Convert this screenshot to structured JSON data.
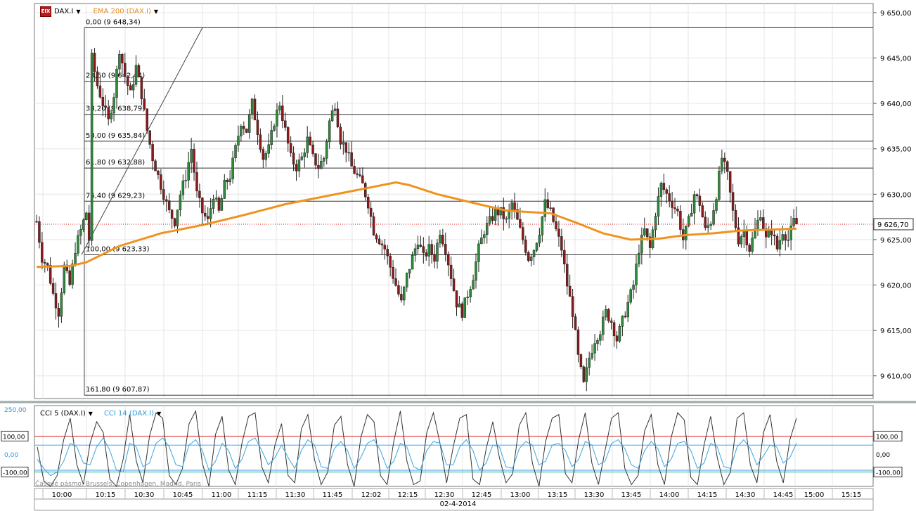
{
  "main_header": {
    "instrument": "DAX.I",
    "ema_label": "EMA 200 (DAX.I)",
    "logo_text": "EIX"
  },
  "sub_header": {
    "cci5_label": "CCI 5 (DAX.I)",
    "cci14_label": "CCI 14 (DAX.I)"
  },
  "timezone": "Časové pásmo: Brussels, Copenhagen, Madrid, Paris",
  "date": "02-4-2014",
  "colors": {
    "up_candle": "#2e8b3a",
    "down_candle": "#8b1a1a",
    "ema": "#f0931e",
    "cci5": "#333333",
    "cci14": "#3aa6e0",
    "fib_line": "#333333",
    "cci_upper": "#d81b1b",
    "cci_lower": "#1aa08a",
    "last_price_line": "#d81b1b"
  },
  "chart_data": [
    {
      "type": "candlestick",
      "title": "DAX.I",
      "ylim": [
        9607.5,
        9651
      ],
      "yticks": [
        "9 650,00",
        "9 645,00",
        "9 640,00",
        "9 635,00",
        "9 630,00",
        "9 625,00",
        "9 620,00",
        "9 615,00",
        "9 610,00"
      ],
      "ytick_values": [
        9650,
        9645,
        9640,
        9635,
        9630,
        9625,
        9620,
        9615,
        9610
      ],
      "xticks": [
        "10:00",
        "10:15",
        "10:30",
        "10:45",
        "11:00",
        "11:15",
        "11:30",
        "11:45",
        "12:02",
        "12:15",
        "12:30",
        "12:45",
        "13:00",
        "13:15",
        "13:30",
        "13:45",
        "14:00",
        "14:15",
        "14:30",
        "14:45",
        "15:00",
        "15:15"
      ],
      "last_price": 9626.7,
      "last_price_label": "9 626,70",
      "fibonacci": [
        {
          "label": "0,00 (9 648,34)",
          "value": 9648.34
        },
        {
          "label": "23,60 (9 642,44)",
          "value": 9642.44
        },
        {
          "label": "38,20 (9 638,79)",
          "value": 9638.79
        },
        {
          "label": "50,00 (9 635,84)",
          "value": 9635.84
        },
        {
          "label": "61,80 (9 632,88)",
          "value": 9632.88
        },
        {
          "label": "76,40 (9 629,23)",
          "value": 9629.23
        },
        {
          "label": "100,00 (9 623,33)",
          "value": 9623.33
        },
        {
          "label": "161,80 (9 607,87)",
          "value": 9607.87
        }
      ],
      "close_path": [
        [
          0,
          9627
        ],
        [
          2,
          9623
        ],
        [
          4,
          9622
        ],
        [
          6,
          9619
        ],
        [
          8,
          9617
        ],
        [
          10,
          9622
        ],
        [
          12,
          9620
        ],
        [
          14,
          9624
        ],
        [
          16,
          9626
        ],
        [
          18,
          9628
        ],
        [
          19,
          9625
        ],
        [
          20,
          9645
        ],
        [
          22,
          9642
        ],
        [
          24,
          9640
        ],
        [
          26,
          9638
        ],
        [
          28,
          9641
        ],
        [
          30,
          9646
        ],
        [
          32,
          9643
        ],
        [
          34,
          9641
        ],
        [
          36,
          9644
        ],
        [
          38,
          9641
        ],
        [
          40,
          9637
        ],
        [
          42,
          9634
        ],
        [
          44,
          9632
        ],
        [
          46,
          9630
        ],
        [
          48,
          9628
        ],
        [
          50,
          9627
        ],
        [
          52,
          9630
        ],
        [
          54,
          9632
        ],
        [
          56,
          9635
        ],
        [
          58,
          9630
        ],
        [
          60,
          9628
        ],
        [
          62,
          9627
        ],
        [
          64,
          9630
        ],
        [
          66,
          9628
        ],
        [
          68,
          9631
        ],
        [
          70,
          9632
        ],
        [
          72,
          9635
        ],
        [
          74,
          9638
        ],
        [
          76,
          9637
        ],
        [
          78,
          9640
        ],
        [
          80,
          9637
        ],
        [
          82,
          9634
        ],
        [
          84,
          9635
        ],
        [
          86,
          9638
        ],
        [
          88,
          9640
        ],
        [
          90,
          9637
        ],
        [
          92,
          9634
        ],
        [
          94,
          9633
        ],
        [
          96,
          9634
        ],
        [
          98,
          9636
        ],
        [
          100,
          9634
        ],
        [
          102,
          9633
        ],
        [
          104,
          9634
        ],
        [
          106,
          9638
        ],
        [
          108,
          9640
        ],
        [
          110,
          9636
        ],
        [
          112,
          9635
        ],
        [
          114,
          9633
        ],
        [
          116,
          9632
        ],
        [
          118,
          9631
        ],
        [
          120,
          9629
        ],
        [
          122,
          9626
        ],
        [
          124,
          9625
        ],
        [
          126,
          9624
        ],
        [
          128,
          9622
        ],
        [
          130,
          9620
        ],
        [
          132,
          9618
        ],
        [
          134,
          9621
        ],
        [
          136,
          9623
        ],
        [
          138,
          9625
        ],
        [
          140,
          9623
        ],
        [
          142,
          9624
        ],
        [
          144,
          9623
        ],
        [
          146,
          9626
        ],
        [
          148,
          9624
        ],
        [
          150,
          9621
        ],
        [
          152,
          9618
        ],
        [
          154,
          9617
        ],
        [
          156,
          9619
        ],
        [
          158,
          9621
        ],
        [
          160,
          9624
        ],
        [
          162,
          9626
        ],
        [
          164,
          9627
        ],
        [
          166,
          9628
        ],
        [
          168,
          9628
        ],
        [
          170,
          9627
        ],
        [
          172,
          9629
        ],
        [
          174,
          9627
        ],
        [
          176,
          9625
        ],
        [
          178,
          9623
        ],
        [
          180,
          9624
        ],
        [
          182,
          9626
        ],
        [
          184,
          9629
        ],
        [
          186,
          9628
        ],
        [
          188,
          9626
        ],
        [
          190,
          9624
        ],
        [
          192,
          9620
        ],
        [
          194,
          9617
        ],
        [
          196,
          9612
        ],
        [
          198,
          9609
        ],
        [
          200,
          9612
        ],
        [
          202,
          9614
        ],
        [
          204,
          9615
        ],
        [
          206,
          9617
        ],
        [
          208,
          9616
        ],
        [
          210,
          9614
        ],
        [
          212,
          9616
        ],
        [
          214,
          9618
        ],
        [
          216,
          9620
        ],
        [
          218,
          9624
        ],
        [
          220,
          9626
        ],
        [
          222,
          9624
        ],
        [
          224,
          9628
        ],
        [
          226,
          9631
        ],
        [
          228,
          9630
        ],
        [
          230,
          9629
        ],
        [
          232,
          9628
        ],
        [
          234,
          9625
        ],
        [
          236,
          9627
        ],
        [
          238,
          9630
        ],
        [
          240,
          9629
        ],
        [
          242,
          9626
        ],
        [
          244,
          9627
        ],
        [
          246,
          9630
        ],
        [
          248,
          9634
        ],
        [
          250,
          9632
        ],
        [
          252,
          9628
        ],
        [
          254,
          9625
        ],
        [
          256,
          9626
        ],
        [
          258,
          9624
        ],
        [
          260,
          9626
        ],
        [
          262,
          9628
        ],
        [
          264,
          9625
        ],
        [
          266,
          9626
        ],
        [
          268,
          9624
        ],
        [
          270,
          9626
        ],
        [
          272,
          9625
        ],
        [
          274,
          9627
        ],
        [
          275,
          9626.7
        ]
      ],
      "ema200": [
        [
          0,
          9622
        ],
        [
          12,
          9622.1
        ],
        [
          18,
          9622.5
        ],
        [
          30,
          9624.3
        ],
        [
          45,
          9625.7
        ],
        [
          60,
          9626.6
        ],
        [
          75,
          9627.7
        ],
        [
          90,
          9628.9
        ],
        [
          105,
          9629.8
        ],
        [
          120,
          9630.7
        ],
        [
          130,
          9631.3
        ],
        [
          135,
          9631.0
        ],
        [
          145,
          9630.0
        ],
        [
          160,
          9628.9
        ],
        [
          170,
          9628.2
        ],
        [
          180,
          9628.0
        ],
        [
          186,
          9627.9
        ],
        [
          195,
          9626.9
        ],
        [
          205,
          9625.7
        ],
        [
          215,
          9625.0
        ],
        [
          225,
          9625.1
        ],
        [
          235,
          9625.5
        ],
        [
          245,
          9625.7
        ],
        [
          255,
          9626.0
        ],
        [
          265,
          9626.1
        ],
        [
          275,
          9626.2
        ]
      ]
    },
    {
      "type": "line",
      "title": "CCI",
      "ylim": [
        -180,
        270
      ],
      "left_ticks": [
        "250,00",
        "100,00",
        "0,00",
        "-100,00"
      ],
      "left_tick_values": [
        250,
        100,
        0,
        -100
      ],
      "right_ticks": [
        "100,00",
        "0,00",
        "-100,00"
      ],
      "right_tick_values": [
        100,
        0,
        -100
      ],
      "series": [
        {
          "name": "CCI 5 (DAX.I)",
          "values": [
            40,
            -150,
            -180,
            -120,
            80,
            200,
            -60,
            -170,
            60,
            180,
            120,
            -140,
            -180,
            -30,
            220,
            -40,
            -160,
            100,
            230,
            200,
            -120,
            -170,
            -80,
            170,
            240,
            -50,
            -180,
            110,
            210,
            -90,
            -170,
            60,
            210,
            230,
            -70,
            -160,
            50,
            170,
            -120,
            -160,
            140,
            220,
            -30,
            -170,
            -100,
            160,
            210,
            -60,
            -180,
            90,
            220,
            180,
            -120,
            -170,
            70,
            240,
            -40,
            -170,
            -150,
            120,
            230,
            60,
            -160,
            40,
            200,
            220,
            -140,
            -170,
            30,
            180,
            -20,
            -160,
            -110,
            160,
            230,
            -50,
            -180,
            70,
            200,
            220,
            -110,
            -160,
            80,
            230,
            -50,
            -170,
            20,
            200,
            230,
            -80,
            -170,
            -120,
            130,
            220,
            -60,
            -170,
            90,
            230,
            190,
            -130,
            -170,
            50,
            210,
            -20,
            -170,
            -100,
            200,
            230,
            -60,
            -160,
            120,
            220,
            -40,
            -160,
            80,
            200
          ]
        },
        {
          "name": "CCI 14 (DAX.I)",
          "values": [
            -30,
            -80,
            -120,
            -100,
            -40,
            60,
            40,
            -50,
            -60,
            40,
            90,
            20,
            -90,
            -100,
            60,
            40,
            -70,
            -50,
            60,
            90,
            40,
            -60,
            -70,
            50,
            80,
            20,
            -90,
            -40,
            60,
            20,
            -80,
            -30,
            70,
            90,
            20,
            -60,
            -20,
            50,
            -20,
            -80,
            20,
            80,
            50,
            -70,
            -80,
            30,
            70,
            20,
            -80,
            -20,
            60,
            80,
            20,
            -80,
            -40,
            60,
            40,
            -70,
            -90,
            20,
            70,
            60,
            -60,
            -60,
            40,
            80,
            20,
            -90,
            -50,
            50,
            40,
            -70,
            -80,
            30,
            70,
            50,
            -60,
            -40,
            50,
            60,
            20,
            -70,
            -30,
            70,
            50,
            -60,
            -40,
            60,
            80,
            30,
            -60,
            -80,
            20,
            70,
            30,
            -70,
            -30,
            60,
            70,
            20,
            -80,
            -50,
            60,
            40,
            -70,
            -80,
            40,
            80,
            30,
            -60,
            -10,
            50,
            40,
            -50,
            -20,
            60
          ]
        }
      ]
    }
  ]
}
